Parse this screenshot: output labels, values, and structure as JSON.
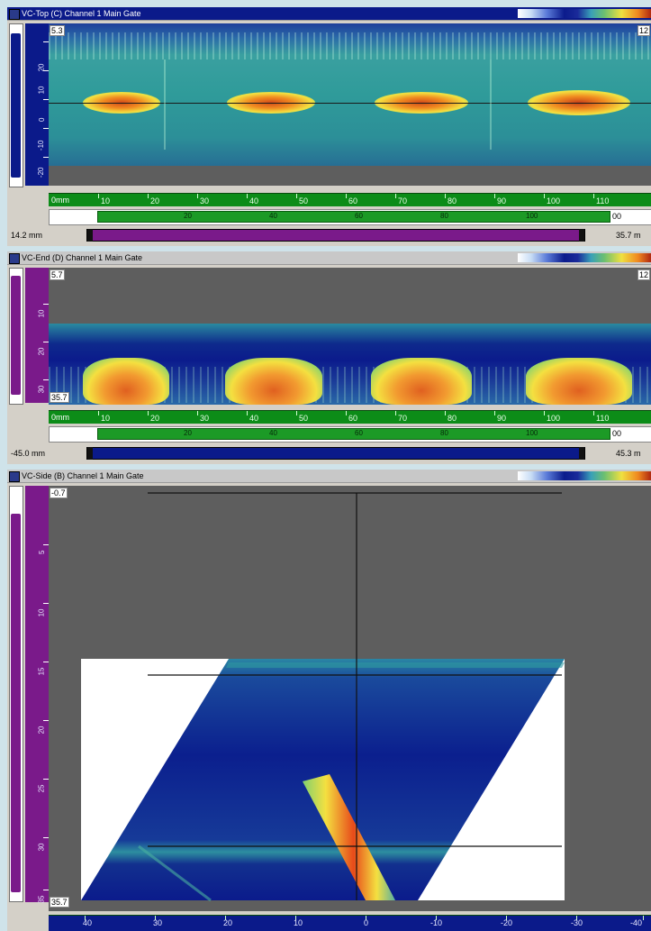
{
  "panels": {
    "top": {
      "title": "VC-Top (C) Channel 1 Main Gate",
      "scale_top": "5.3",
      "ruler_labels": [
        "20",
        "10",
        "0",
        "-10",
        "-20"
      ],
      "ruler_unit": "0mm",
      "x_ticks": [
        "10",
        "20",
        "30",
        "40",
        "50",
        "60",
        "70",
        "80",
        "90",
        "100",
        "110"
      ],
      "range_ticks": [
        "20",
        "40",
        "60",
        "80",
        "100"
      ],
      "range_end": "00",
      "slider_left": "14.2 mm",
      "slider_right": "35.7 m",
      "corner_right": "12"
    },
    "end": {
      "title": "VC-End (D) Channel 1 Main Gate",
      "scale_top": "5.7",
      "scale_bottom": "35.7",
      "ruler_labels": [
        "10",
        "20",
        "30"
      ],
      "ruler_unit": "0mm",
      "x_ticks": [
        "10",
        "20",
        "30",
        "40",
        "50",
        "60",
        "70",
        "80",
        "90",
        "100",
        "110"
      ],
      "range_ticks": [
        "20",
        "40",
        "60",
        "80",
        "100"
      ],
      "range_end": "00",
      "slider_left": "-45.0 mm",
      "slider_right": "45.3 m",
      "corner_right": "12"
    },
    "side": {
      "title": "VC-Side (B) Channel 1 Main Gate",
      "scale_top": "-0.7",
      "scale_bottom": "35.7",
      "ruler_labels": [
        "5",
        "10",
        "15",
        "20",
        "25",
        "30",
        "35"
      ],
      "x_ticks": [
        "40",
        "30",
        "20",
        "10",
        "0",
        "-10",
        "-20",
        "-30",
        "-40"
      ]
    }
  },
  "colors": {
    "active_title": "#0b1a8a",
    "ruler_green": "#0c8c18",
    "scan_background": "#2f9b9a",
    "gray_background": "#5e5e5e",
    "purple_bar": "#7a1a8a",
    "navy_bar": "#0b1a8a"
  }
}
